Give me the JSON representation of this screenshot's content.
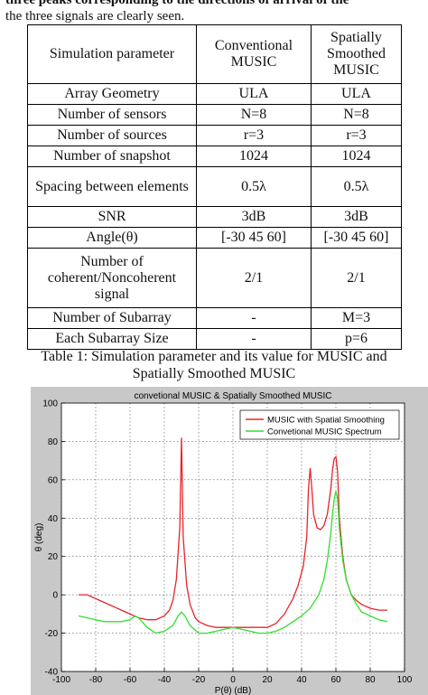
{
  "paper": {
    "top_line1": "three peaks corresponding to the directions of arrival of the",
    "top_line2": "the three signals are clearly seen.",
    "table": {
      "headers": [
        "Simulation parameter",
        "Conventional MUSIC",
        "Spatially Smoothed MUSIC"
      ],
      "rows": [
        [
          "Array Geometry",
          "ULA",
          "ULA"
        ],
        [
          "Number of sensors",
          "N=8",
          "N=8"
        ],
        [
          "Number of sources",
          "r=3",
          "r=3"
        ],
        [
          "Number of snapshot",
          "1024",
          "1024"
        ],
        [
          "Spacing between elements",
          "0.5λ",
          "0.5λ"
        ],
        [
          "SNR",
          "3dB",
          "3dB"
        ],
        [
          "Angle(θ)",
          "[-30 45 60]",
          "[-30 45 60]"
        ],
        [
          "Number of coherent/Noncoherent signal",
          "2/1",
          "2/1"
        ],
        [
          "Number of Subarray",
          "-",
          "M=3"
        ],
        [
          "Each Subarray Size",
          "-",
          "p=6"
        ]
      ]
    },
    "caption_line1": "Table 1: Simulation parameter and its value for MUSIC and",
    "caption_line2": "Spatially Smoothed MUSIC"
  },
  "chart_data": {
    "type": "line",
    "title": "convetional MUSIC & Spatially Smoothed MUSIC",
    "xlabel": "P(θ) (dB)",
    "ylabel": "θ (deg)",
    "xlim": [
      -100,
      100
    ],
    "ylim": [
      -40,
      100
    ],
    "xticks": [
      -100,
      -80,
      -60,
      -40,
      -20,
      0,
      20,
      40,
      60,
      80,
      100
    ],
    "yticks": [
      -40,
      -20,
      0,
      20,
      40,
      60,
      80,
      100
    ],
    "grid": true,
    "legend_position": "top-right",
    "colors": {
      "background": "#c8c8c8",
      "plot_bg": "#ffffff",
      "smoothing": "#e8232a",
      "conventional": "#2ee02e"
    },
    "series": [
      {
        "name": "MUSIC with Spatial Smoothing",
        "color": "#e8232a",
        "x": [
          -90,
          -85,
          -80,
          -75,
          -70,
          -65,
          -60,
          -55,
          -50,
          -45,
          -40,
          -37,
          -35,
          -33,
          -31,
          -30,
          -29,
          -27,
          -25,
          -22,
          -20,
          -15,
          -10,
          -5,
          0,
          5,
          10,
          15,
          20,
          25,
          30,
          35,
          38,
          41,
          43,
          44,
          45,
          46,
          47,
          49,
          51,
          53,
          55,
          57,
          58,
          59,
          60,
          61,
          62,
          64,
          66,
          69,
          72,
          75,
          80,
          85,
          90
        ],
        "y": [
          0,
          0,
          -2,
          -4,
          -6,
          -8,
          -10,
          -12,
          -13,
          -13,
          -11,
          -8,
          -3,
          8,
          35,
          82,
          30,
          5,
          -5,
          -12,
          -14,
          -16,
          -17,
          -17,
          -17,
          -17,
          -17,
          -17,
          -17,
          -15,
          -10,
          -2,
          5,
          15,
          30,
          55,
          66,
          55,
          42,
          35,
          34,
          36,
          42,
          55,
          65,
          71,
          72,
          64,
          40,
          20,
          8,
          0,
          -3,
          -5,
          -7,
          -8,
          -8
        ]
      },
      {
        "name": "Convetional MUSIC Spectrum",
        "color": "#2ee02e",
        "x": [
          -90,
          -85,
          -80,
          -75,
          -70,
          -65,
          -60,
          -57,
          -55,
          -52,
          -50,
          -45,
          -40,
          -35,
          -32,
          -30,
          -28,
          -25,
          -20,
          -15,
          -10,
          -5,
          0,
          5,
          10,
          15,
          20,
          25,
          30,
          35,
          40,
          45,
          50,
          53,
          55,
          57,
          58,
          59,
          60,
          61,
          62,
          64,
          66,
          69,
          72,
          75,
          80,
          85,
          90
        ],
        "y": [
          -11,
          -12,
          -13,
          -14,
          -14,
          -14,
          -13,
          -11,
          -12,
          -15,
          -17,
          -20,
          -19,
          -16,
          -11,
          -9,
          -11,
          -16,
          -20,
          -20,
          -19,
          -18,
          -17,
          -18,
          -19,
          -20,
          -20,
          -19,
          -17,
          -14,
          -11,
          -7,
          0,
          8,
          18,
          32,
          42,
          50,
          54,
          50,
          35,
          18,
          8,
          0,
          -5,
          -9,
          -11,
          -13,
          -14
        ]
      }
    ]
  }
}
